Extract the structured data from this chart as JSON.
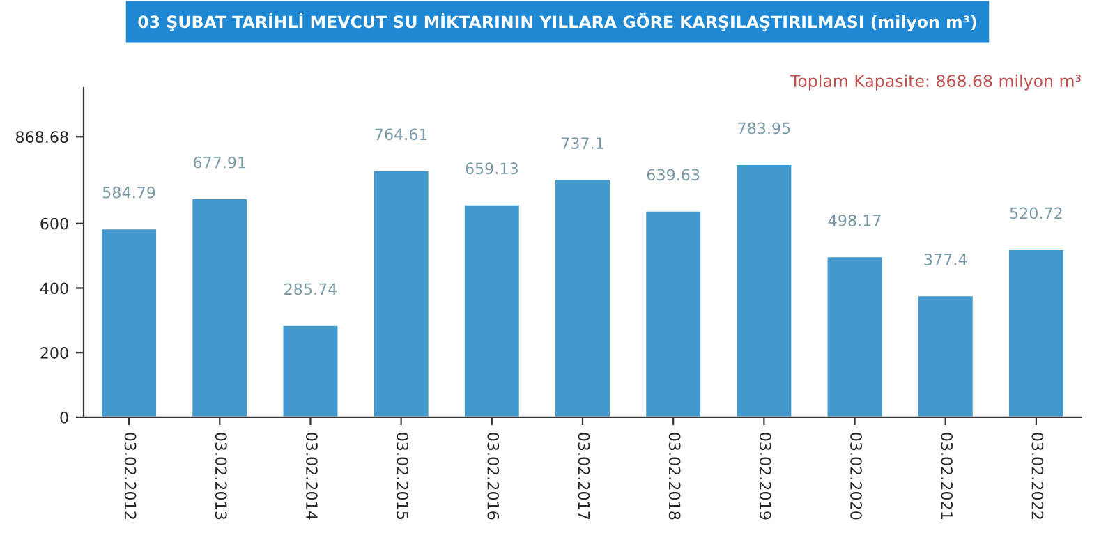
{
  "chart_data": {
    "type": "bar",
    "title": "03 ŞUBAT TARİHLİ MEVCUT SU MİKTARININ YILLARA GÖRE KARŞILAŞTIRILMASI (milyon m³)",
    "categories": [
      "03.02.2012",
      "03.02.2013",
      "03.02.2014",
      "03.02.2015",
      "03.02.2016",
      "03.02.2017",
      "03.02.2018",
      "03.02.2019",
      "03.02.2020",
      "03.02.2021",
      "03.02.2022"
    ],
    "values": [
      584.79,
      677.91,
      285.74,
      764.61,
      659.13,
      737.1,
      639.63,
      783.95,
      498.17,
      377.4,
      520.72
    ],
    "color": "#4499cc",
    "ylim": [
      0,
      1020
    ],
    "yticks": [
      0,
      200,
      400,
      600,
      868.68
    ],
    "data_labels": true,
    "grid": false,
    "annotations": [
      "Toplam Kapasite: 868.68 milyon m³"
    ]
  }
}
